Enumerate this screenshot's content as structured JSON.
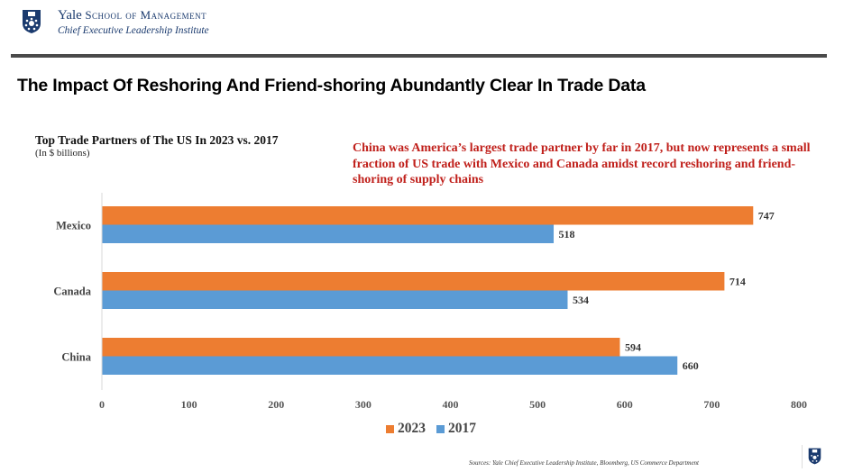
{
  "header": {
    "brand_name": "Yale",
    "brand_school": "School of Management",
    "brand_institute": "Chief Executive Leadership Institute",
    "logo_icon": "yale-shield-icon"
  },
  "page_title": "The Impact Of Reshoring And Friend-shoring Abundantly Clear In Trade Data",
  "annotation": "China was America’s largest trade partner by far in 2017, but now represents a small fraction of US trade with Mexico and Canada amidst record reshoring and friend-shoring of supply chains",
  "footer": {
    "sources": "Sources: Yale Chief Executive Leadership Institute, Bloomberg, US Commerce Department"
  },
  "colors": {
    "series_2023": "#ed7d31",
    "series_2017": "#5b9bd5",
    "annotation": "#c0201b"
  },
  "chart_data": {
    "type": "bar",
    "orientation": "horizontal",
    "title": "Top Trade Partners of The US In 2023 vs. 2017",
    "subtitle": "(In $ billions)",
    "categories": [
      "Mexico",
      "Canada",
      "China"
    ],
    "series": [
      {
        "name": "2023",
        "color": "#ed7d31",
        "values": [
          747,
          714,
          594
        ]
      },
      {
        "name": "2017",
        "color": "#5b9bd5",
        "values": [
          518,
          534,
          660
        ]
      }
    ],
    "xlabel": "",
    "ylabel": "",
    "xlim": [
      0,
      800
    ],
    "xticks": [
      0,
      100,
      200,
      300,
      400,
      500,
      600,
      700,
      800
    ],
    "grid": false,
    "data_labels": true,
    "legend": {
      "position": "bottom",
      "entries": [
        "2023",
        "2017"
      ]
    }
  }
}
